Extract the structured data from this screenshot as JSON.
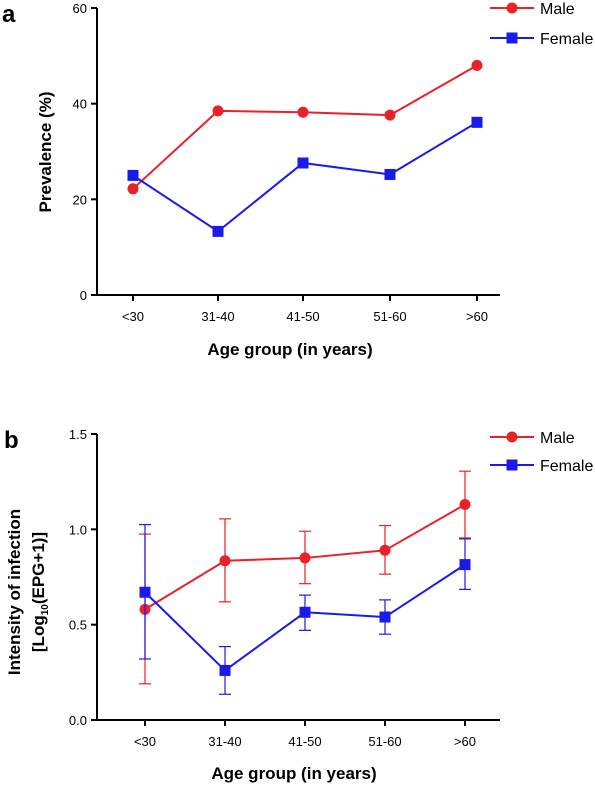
{
  "chart_data": [
    {
      "panel": "a",
      "type": "line",
      "categories": [
        "<30",
        "31-40",
        "41-50",
        "51-60",
        ">60"
      ],
      "xlabel": "Age group (in years)",
      "ylabel": "Prevalence (%)",
      "ylim": [
        0,
        60
      ],
      "yticks": [
        0,
        20,
        40,
        60
      ],
      "legend_position": "top-right",
      "series": [
        {
          "name": "Male",
          "color": "#e8212a",
          "marker": "circle",
          "values": [
            22.2,
            38.5,
            38.2,
            37.6,
            48.0
          ]
        },
        {
          "name": "Female",
          "color": "#1a1aeb",
          "marker": "square",
          "values": [
            25.0,
            13.3,
            27.6,
            25.2,
            36.1
          ]
        }
      ]
    },
    {
      "panel": "b",
      "type": "line",
      "categories": [
        "<30",
        "31-40",
        "41-50",
        "51-60",
        ">60"
      ],
      "xlabel": "Age group (in years)",
      "ylabel": "Intensity of infection",
      "ylabel2_main": "Log",
      "ylabel2_sub": "10",
      "ylabel2_rest": "(EPG+1)",
      "ylim": [
        0,
        1.5
      ],
      "yticks": [
        "0.0",
        "0.5",
        "1.0",
        "1.5"
      ],
      "legend_position": "top-right",
      "series": [
        {
          "name": "Male",
          "color": "#e8212a",
          "marker": "circle",
          "values": [
            0.58,
            0.835,
            0.85,
            0.89,
            1.13
          ],
          "err_low": [
            0.19,
            0.62,
            0.715,
            0.765,
            0.955
          ],
          "err_high": [
            0.975,
            1.055,
            0.99,
            1.02,
            1.305
          ]
        },
        {
          "name": "Female",
          "color": "#1a1aeb",
          "marker": "square",
          "values": [
            0.67,
            0.26,
            0.565,
            0.54,
            0.815
          ],
          "err_low": [
            0.32,
            0.135,
            0.47,
            0.45,
            0.685
          ],
          "err_high": [
            1.025,
            0.385,
            0.655,
            0.63,
            0.95
          ]
        }
      ]
    }
  ]
}
